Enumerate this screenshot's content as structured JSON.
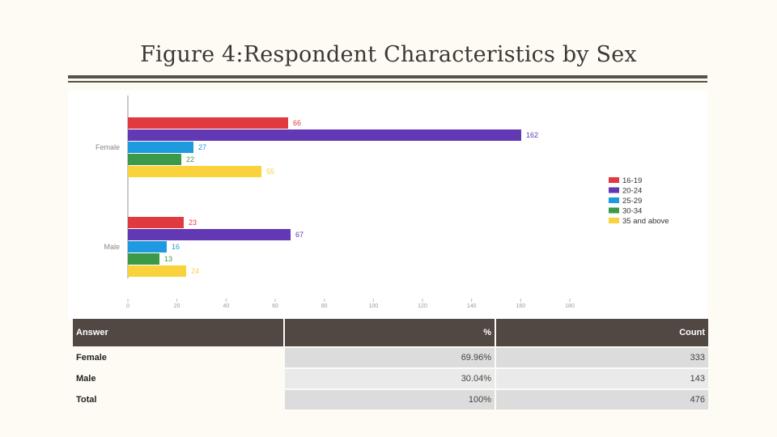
{
  "title": "Figure 4:Respondent Characteristics by Sex",
  "chart_data": {
    "type": "bar",
    "orientation": "horizontal",
    "categories": [
      "Female",
      "Male"
    ],
    "series": [
      {
        "name": "16-19",
        "color": "#e03a3e",
        "values": [
          66,
          23
        ]
      },
      {
        "name": "20-24",
        "color": "#6238b4",
        "values": [
          162,
          67
        ]
      },
      {
        "name": "25-29",
        "color": "#1d9ae0",
        "values": [
          27,
          16
        ]
      },
      {
        "name": "30-34",
        "color": "#3a9a48",
        "values": [
          22,
          13
        ]
      },
      {
        "name": "35 and above",
        "color": "#f9d23c",
        "values": [
          55,
          24
        ]
      }
    ],
    "data_labels": [
      [
        "66",
        "162",
        "27",
        "22",
        "55"
      ],
      [
        "23",
        "67",
        "16",
        "13",
        "24"
      ]
    ],
    "xticks": [
      0,
      20,
      40,
      60,
      80,
      100,
      120,
      140,
      160,
      180
    ],
    "xtick_labels": [
      "0",
      "20",
      "40",
      "60",
      "80",
      "100",
      "120",
      "140",
      "160",
      "180"
    ],
    "xlim": [
      0,
      180
    ],
    "legend_position": "right",
    "grid": false
  },
  "table": {
    "headers": [
      "Answer",
      "%",
      "Count"
    ],
    "rows": [
      [
        "Female",
        "69.96%",
        "333"
      ],
      [
        "Male",
        "30.04%",
        "143"
      ],
      [
        "Total",
        "100%",
        "476"
      ]
    ]
  }
}
